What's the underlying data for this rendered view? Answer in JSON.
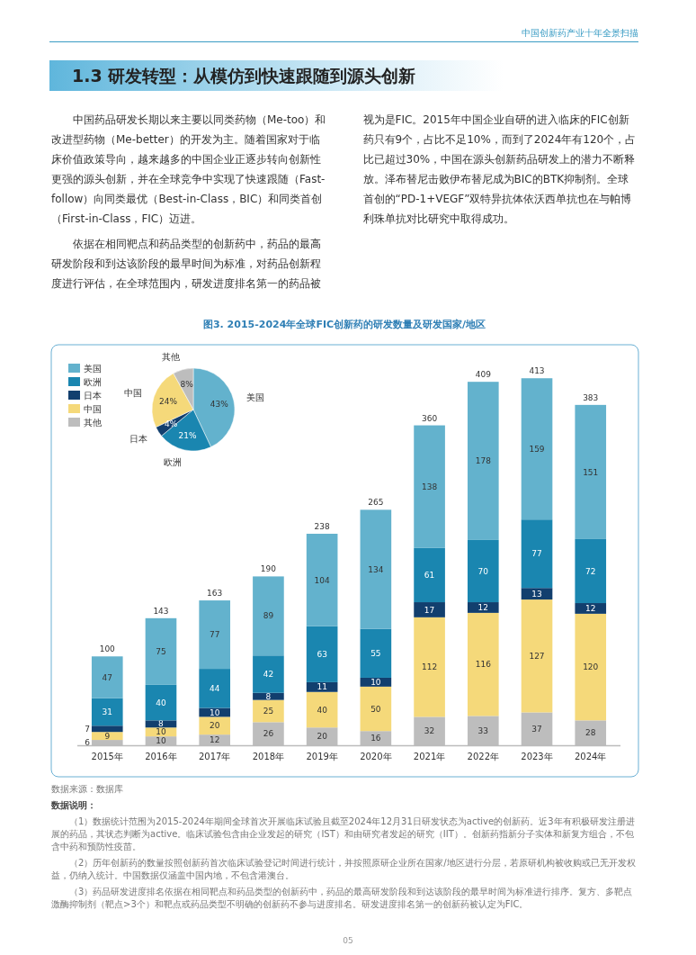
{
  "chart_data": [
    {
      "type": "bar",
      "title": "图3. 2015-2024年全球FIC创新药的研发数量及研发国家/地区",
      "stacked": true,
      "legend": "top left",
      "data_labels": true,
      "categories": [
        "2015年",
        "2016年",
        "2017年",
        "2018年",
        "2019年",
        "2020年",
        "2021年",
        "2022年",
        "2023年",
        "2024年"
      ],
      "series": [
        {
          "name": "其他",
          "color": "#bdbdbd",
          "values": [
            6,
            10,
            12,
            26,
            20,
            16,
            32,
            33,
            37,
            28
          ]
        },
        {
          "name": "中国",
          "color": "#f5d97a",
          "values": [
            9,
            10,
            20,
            25,
            40,
            50,
            112,
            116,
            127,
            120
          ]
        },
        {
          "name": "日本",
          "color": "#123f6e",
          "values": [
            7,
            8,
            10,
            8,
            11,
            10,
            17,
            12,
            13,
            12
          ]
        },
        {
          "name": "欧洲",
          "color": "#1a86b0",
          "values": [
            31,
            40,
            44,
            42,
            63,
            55,
            61,
            70,
            77,
            72
          ]
        },
        {
          "name": "美国",
          "color": "#63b2cd",
          "values": [
            47,
            75,
            77,
            89,
            104,
            134,
            138,
            178,
            159,
            151
          ]
        }
      ],
      "totals": [
        "100",
        "143",
        "163",
        "190",
        "238",
        "265",
        "360",
        "409",
        "413",
        "383"
      ],
      "annotations": [
        "中国创新药产业十年全景扫描",
        "1.3 研发转型：从模仿到快速跟随到源头创新",
        "中国药品研发长期以来主要以同类药物（Me-too）和改进型药物（Me-better）的开发为主。随着国家对于临床价值政策导向，越来越多的中国企业正逐步转向创新性更强的源头创新，并在全球竞争中实现了快速跟随（Fast-follow）向同类最优（Best-in-Class，BIC）和同类首创（First-in-Class，FIC）迈进。",
        "依据在相同靶点和药品类型的创新药中，药品的最高研发阶段和到达该阶段的最早时间为标准，对药品创新程度进行评估，在全球范围内，研发进度排名第一的药品被视为是FIC。2015年中国企业自研的进入临床的FIC创新药只有9个，占比不足10%，而到了2024年有120个，占比已超过30%，中国在源头创新药品研发上的潜力不断释放。泽布替尼击败伊布替尼成为BIC的BTK抑制剂。全球首创的“PD-1+VEGF”双特异抗体依沃西单抗也在与帕博利珠单抗对比研究中取得成功。",
        "数据来源：数据库",
        "数据说明：",
        "（1）数据统计范围为2015-2024年期间全球首次开展临床试验且截至2024年12月31日研发状态为active的创新药。近3年有积极研发注册进展的药品，其状态判断为active。临床试验包含由企业发起的研究（IST）和由研究者发起的研究（IIT）。创新药指新分子实体和新复方组合，不包含中药和预防性疫苗。",
        "（2）历年创新药的数量按照创新药首次临床试验登记时间进行统计，并按照原研企业所在国家/地区进行分层，若原研机构被收购或已无开发权益，仍纳入统计。中国数据仅涵盖中国内地，不包含港澳台。",
        "（3）药品研发进度排名依据在相同靶点和药品类型的创新药中，药品的最高研发阶段和到达该阶段的最早时间为标准进行排序。复方、多靶点激酶抑制剂（靶点>3个）和靶点或药品类型不明确的创新药不参与进度排名。研发进度排名第一的创新药被认定为FIC。",
        "05"
      ]
    },
    {
      "type": "pie",
      "categories": [
        "美国",
        "欧洲",
        "日本",
        "中国",
        "其他"
      ],
      "values": [
        43,
        21,
        4,
        24,
        8
      ],
      "colors": [
        "#63b2cd",
        "#1a86b0",
        "#123f6e",
        "#f5d97a",
        "#bdbdbd"
      ],
      "value_labels": [
        "43%",
        "21%",
        "4%",
        "24%",
        "8%"
      ]
    }
  ]
}
